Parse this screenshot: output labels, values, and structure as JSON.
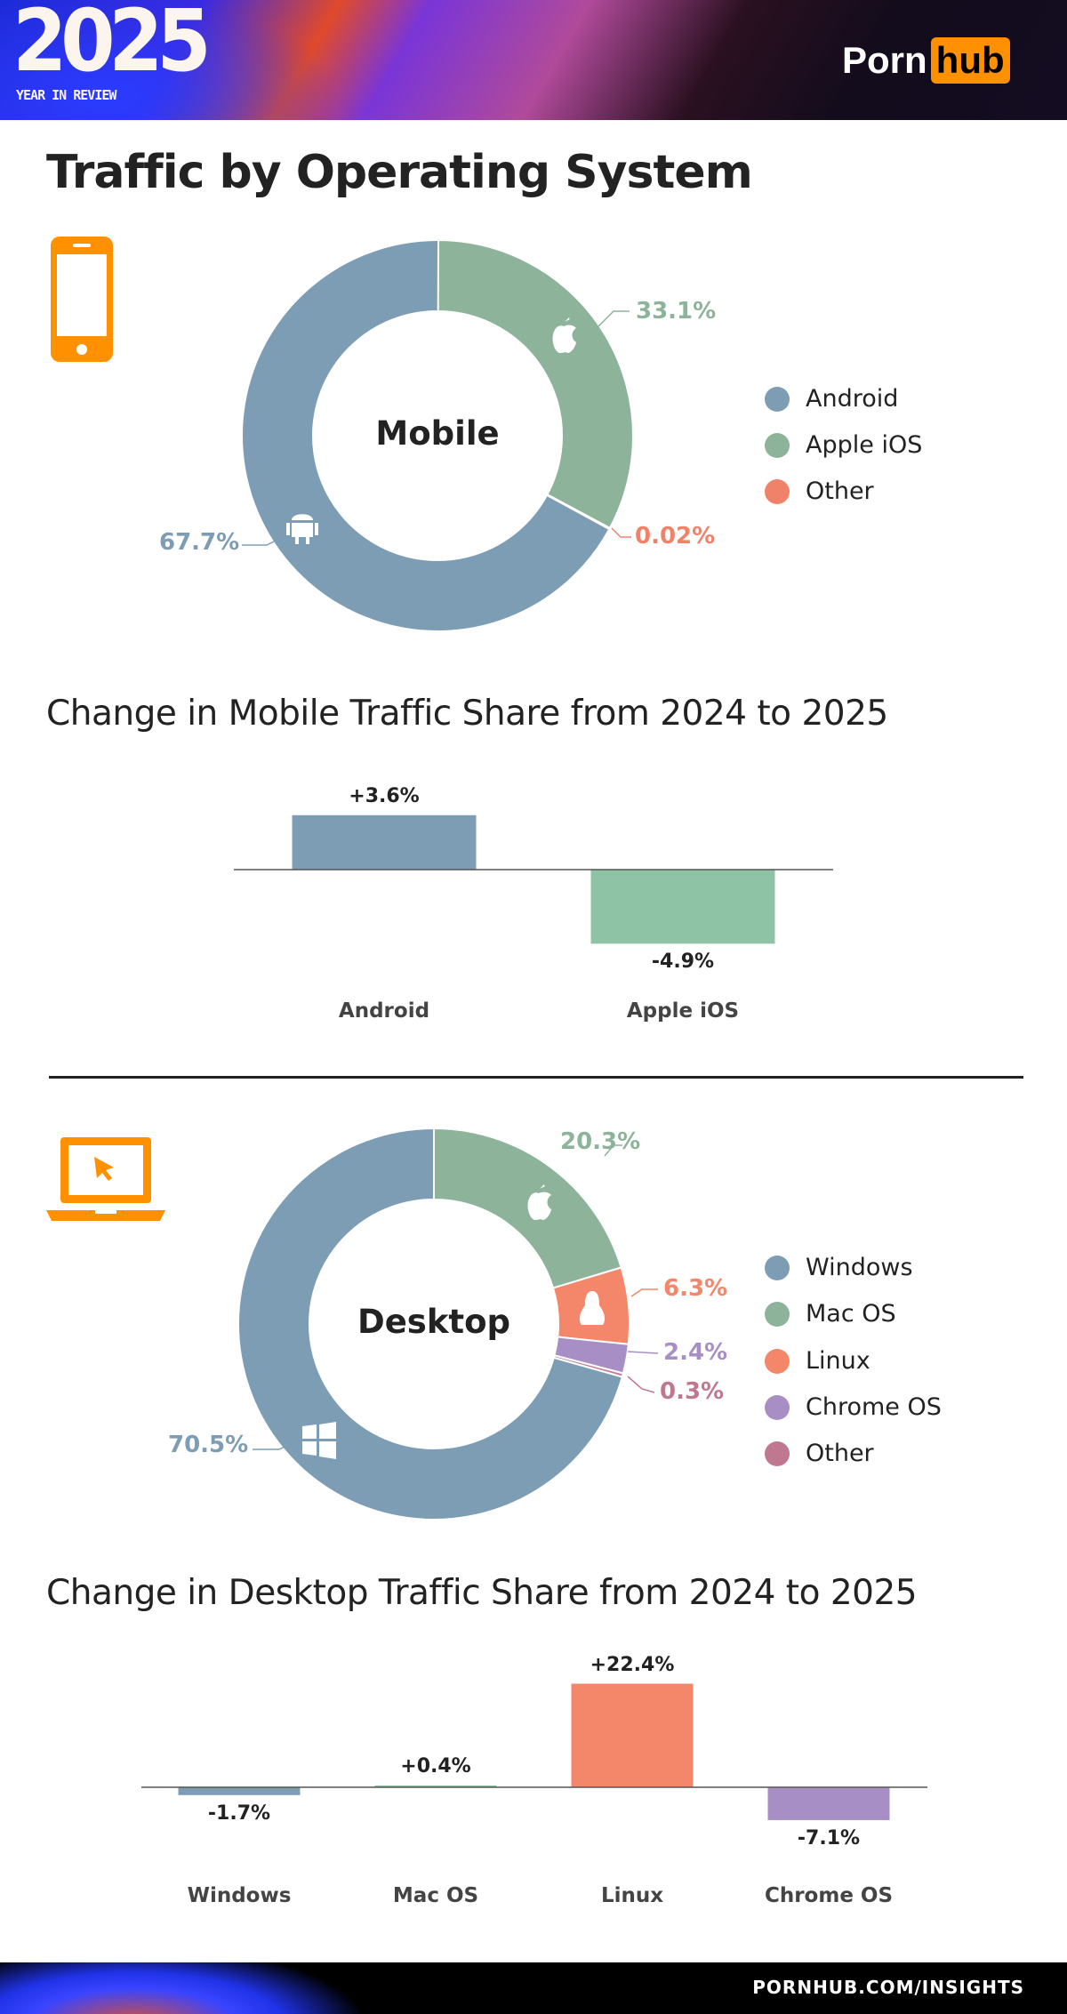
{
  "header": {
    "year": "2025",
    "subtitle": "YEAR IN REVIEW",
    "logo_left": "Porn",
    "logo_right": "hub"
  },
  "title": "Traffic by Operating System",
  "colors": {
    "brand": "#ff9000",
    "android": "#7d9db5",
    "ios": "#8db49a",
    "mobile_other": "#f0826a",
    "windows": "#7d9db5",
    "macos": "#8db49a",
    "linux": "#f4866a",
    "chromeos": "#a78fc6",
    "desktop_other": "#c07890"
  },
  "chart_data": [
    {
      "type": "pie",
      "variant": "donut",
      "center_label": "Mobile",
      "icon": "phone-icon",
      "slices": [
        {
          "name": "Apple iOS",
          "value": 33.1,
          "label": "33.1%",
          "color": "#8db49a",
          "icon": "apple-icon"
        },
        {
          "name": "Other",
          "value": 0.02,
          "label": "0.02%",
          "color": "#f0826a"
        },
        {
          "name": "Android",
          "value": 67.7,
          "label": "67.7%",
          "color": "#7d9db5",
          "icon": "android-icon"
        }
      ],
      "legend": [
        "Android",
        "Apple iOS",
        "Other"
      ],
      "legend_colors": [
        "#7d9db5",
        "#8db49a",
        "#f0826a"
      ],
      "legend_placement": "right"
    },
    {
      "type": "bar",
      "title": "Change in Mobile Traffic Share from 2024 to 2025",
      "categories": [
        "Android",
        "Apple iOS"
      ],
      "values": [
        3.6,
        -4.9
      ],
      "labels": [
        "+3.6%",
        "-4.9%"
      ],
      "colors": [
        "#7d9db5",
        "#8ec3a5"
      ]
    },
    {
      "type": "pie",
      "variant": "donut",
      "center_label": "Desktop",
      "icon": "laptop-icon",
      "slices": [
        {
          "name": "Mac OS",
          "value": 20.3,
          "label": "20.3%",
          "color": "#8db49a",
          "icon": "apple-icon"
        },
        {
          "name": "Linux",
          "value": 6.3,
          "label": "6.3%",
          "color": "#f4866a",
          "icon": "linux-icon"
        },
        {
          "name": "Chrome OS",
          "value": 2.4,
          "label": "2.4%",
          "color": "#a78fc6"
        },
        {
          "name": "Other",
          "value": 0.3,
          "label": "0.3%",
          "color": "#c07890"
        },
        {
          "name": "Windows",
          "value": 70.5,
          "label": "70.5%",
          "color": "#7d9db5",
          "icon": "windows-icon"
        }
      ],
      "legend": [
        "Windows",
        "Mac OS",
        "Linux",
        "Chrome OS",
        "Other"
      ],
      "legend_colors": [
        "#7d9db5",
        "#8db49a",
        "#f4866a",
        "#a78fc6",
        "#c07890"
      ],
      "legend_placement": "right"
    },
    {
      "type": "bar",
      "title": "Change in Desktop Traffic Share from 2024 to 2025",
      "categories": [
        "Windows",
        "Mac OS",
        "Linux",
        "Chrome OS"
      ],
      "values": [
        -1.7,
        0.4,
        22.4,
        -7.1
      ],
      "labels": [
        "-1.7%",
        "+0.4%",
        "+22.4%",
        "-7.1%"
      ],
      "colors": [
        "#7d9db5",
        "#8ec3a5",
        "#f4866a",
        "#a78fc6"
      ]
    }
  ],
  "footer": {
    "link": "PORNHUB.COM/INSIGHTS"
  }
}
